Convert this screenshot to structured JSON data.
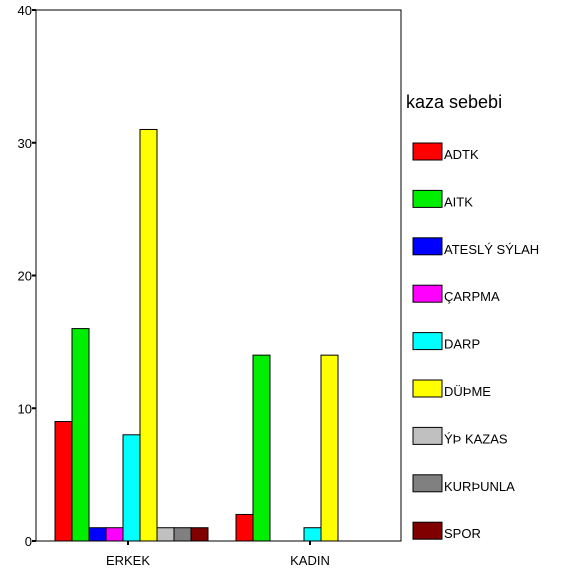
{
  "chart_data": {
    "type": "bar",
    "categories": [
      "ERKEK",
      "KADIN"
    ],
    "series": [
      {
        "name": "ADTK",
        "color": "#ff0000",
        "values": [
          9,
          2
        ]
      },
      {
        "name": "AITK",
        "color": "#00ee00",
        "values": [
          16,
          14
        ]
      },
      {
        "name": "ATESLÝ SÝLAH",
        "color": "#0000ff",
        "values": [
          1,
          0
        ]
      },
      {
        "name": "ÇARPMA",
        "color": "#ff00ff",
        "values": [
          1,
          0
        ]
      },
      {
        "name": "DARP",
        "color": "#00ffff",
        "values": [
          8,
          1
        ]
      },
      {
        "name": "DÜÞME",
        "color": "#ffff00",
        "values": [
          31,
          14
        ]
      },
      {
        "name": "ÝÞ KAZAS",
        "color": "#c0c0c0",
        "values": [
          1,
          0
        ]
      },
      {
        "name": "KURÞUNLA",
        "color": "#808080",
        "values": [
          1,
          0
        ]
      },
      {
        "name": "SPOR",
        "color": "#800000",
        "values": [
          1,
          0
        ]
      }
    ],
    "yticks": [
      0,
      10,
      20,
      30,
      40
    ],
    "ylim": [
      0,
      40
    ],
    "grid": false,
    "legend_title": "kaza sebebi",
    "legend_position": "right"
  }
}
